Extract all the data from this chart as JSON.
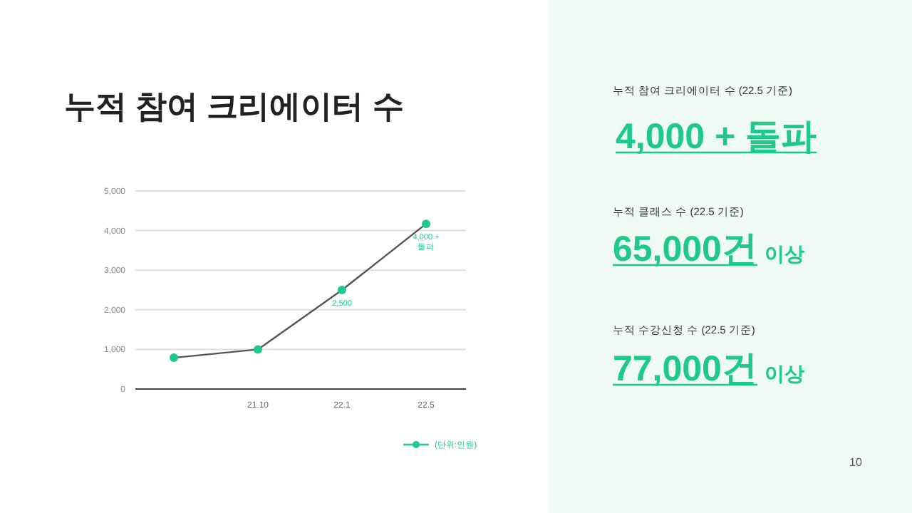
{
  "chart_data": [
    {
      "type": "line",
      "title": "누적 참여 크리에이터 수",
      "categories": [
        null,
        "21.10",
        "22.1",
        "22.5"
      ],
      "series": [
        {
          "name": "(단위:인원)",
          "color": "#1ec989",
          "values": [
            790,
            1000,
            2500,
            4170
          ],
          "value_labels": [
            null,
            null,
            "2,500",
            null
          ]
        }
      ],
      "annotations": [
        {
          "text": "4,000 + 돌파",
          "x": "22.5",
          "y": 4170
        }
      ],
      "ylim": [
        0,
        5000
      ],
      "yticks": [
        0,
        {
          "value": 1000,
          "label": "1,000"
        },
        {
          "value": 2000,
          "label": "2,000"
        },
        {
          "value": 3000,
          "label": "3,000"
        },
        {
          "value": 4000,
          "label": "4,000"
        },
        {
          "value": 5000,
          "label": "5,000"
        }
      ],
      "grid": "y",
      "legend": "bottom right",
      "marker": "circle",
      "line_style": "solid"
    },
    {
      "type": "other",
      "annotations": [
        "누적 참여 크리에이터 수 (22.5 기준)",
        "4,000 + 돌파",
        "누적 클래스 수 (22.5 기준)",
        "65,000건",
        "이상",
        "누적 수강신청 수 (22.5 기준)",
        "77,000건",
        "이상",
        "10"
      ]
    }
  ]
}
